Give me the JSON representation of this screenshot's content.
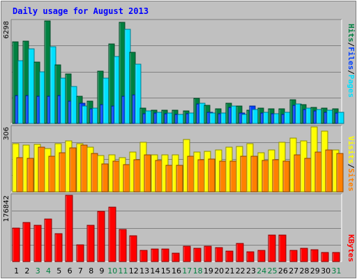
{
  "chart_data": [
    {
      "type": "bar",
      "title": "Daily usage for August 2013",
      "ymax_label": "6298",
      "series": [
        {
          "name": "Hits",
          "color": "#008040",
          "values": [
            5000,
            5050,
            3750,
            6298,
            3600,
            3050,
            1650,
            1350,
            3200,
            4900,
            6200,
            4350,
            950,
            800,
            800,
            800,
            750,
            1550,
            1100,
            900,
            1250,
            1050,
            800,
            950,
            900,
            900,
            1450,
            1150,
            1000,
            950,
            900
          ]
        },
        {
          "name": "Files",
          "color": "#0040ff",
          "values": [
            1700,
            1700,
            1650,
            1650,
            1700,
            1350,
            1250,
            900,
            1150,
            1050,
            1650,
            1750,
            600,
            650,
            600,
            550,
            600,
            1200,
            700,
            600,
            1000,
            650,
            1050,
            650,
            600,
            550,
            1100,
            850,
            750,
            700,
            650
          ]
        },
        {
          "name": "Pages",
          "color": "#00e0ff",
          "values": [
            3850,
            4600,
            3150,
            4700,
            2800,
            2250,
            1050,
            950,
            2800,
            4100,
            5800,
            3650,
            750,
            700,
            650,
            550,
            650,
            1250,
            650,
            650,
            1050,
            550,
            850,
            700,
            600,
            700,
            1200,
            950,
            850,
            800,
            700
          ]
        }
      ],
      "legend_labels": [
        "Pages",
        "/",
        "Files",
        "/",
        "Hits"
      ]
    },
    {
      "type": "bar",
      "ymax_label": "306",
      "series": [
        {
          "name": "Visits",
          "color": "#ffff00",
          "values": [
            226,
            221,
            224,
            205,
            228,
            239,
            228,
            212,
            172,
            176,
            160,
            189,
            234,
            176,
            173,
            175,
            248,
            188,
            190,
            196,
            211,
            213,
            227,
            185,
            196,
            234,
            252,
            239,
            306,
            286,
            196
          ]
        },
        {
          "name": "Sites",
          "color": "#ff8000",
          "values": [
            162,
            157,
            210,
            168,
            185,
            207,
            221,
            180,
            133,
            145,
            127,
            151,
            174,
            148,
            125,
            126,
            167,
            150,
            155,
            145,
            144,
            169,
            167,
            148,
            151,
            144,
            176,
            157,
            189,
            196,
            181
          ]
        }
      ],
      "legend_labels": [
        "Sites",
        "/",
        "Visits"
      ]
    },
    {
      "type": "bar",
      "ymax_label": "176842",
      "series": [
        {
          "name": "KBytes",
          "color": "#ff0000",
          "values": [
            90000,
            104000,
            97000,
            115000,
            75000,
            178000,
            45000,
            97000,
            135000,
            147000,
            87000,
            70000,
            30000,
            33000,
            33000,
            23000,
            42000,
            36000,
            42000,
            38000,
            28000,
            48000,
            27000,
            30000,
            71000,
            71000,
            30000,
            36000,
            31000,
            25000,
            24000
          ]
        }
      ],
      "legend_labels": [
        "KBytes"
      ]
    }
  ],
  "x_labels": [
    "1",
    "2",
    "3",
    "4",
    "5",
    "6",
    "7",
    "8",
    "9",
    "10",
    "11",
    "12",
    "13",
    "14",
    "15",
    "16",
    "17",
    "18",
    "19",
    "20",
    "21",
    "22",
    "23",
    "24",
    "25",
    "26",
    "27",
    "28",
    "29",
    "30",
    "31"
  ],
  "weekend_days": [
    3,
    4,
    10,
    11,
    17,
    18,
    24,
    25,
    31
  ],
  "colors": {
    "background": "#c0c0c0",
    "title": "#0000ff",
    "weekend_label": "#008040",
    "weekday_label": "#000000",
    "slash": "#000000"
  }
}
